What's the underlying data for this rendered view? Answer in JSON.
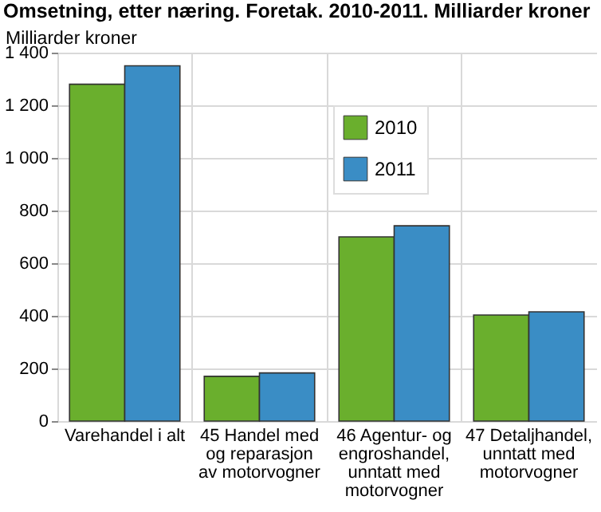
{
  "chart_data": {
    "type": "bar",
    "title": "Omsetning, etter næring. Foretak. 2010-2011. Milliarder kroner",
    "ylabel": "Milliarder kroner",
    "categories": [
      "Varehandel i alt",
      "45 Handel med og reparasjon av motorvogner",
      "46 Agentur- og engroshandel, unntatt med motorvogner",
      "47 Detaljhandel, unntatt med motorvogner"
    ],
    "series": [
      {
        "name": "2010",
        "color": "#6aaf2d",
        "values": [
          1280,
          170,
          700,
          403
        ]
      },
      {
        "name": "2011",
        "color": "#3a8dc5",
        "values": [
          1350,
          183,
          742,
          415
        ]
      }
    ],
    "ylim": [
      0,
      1400
    ],
    "yticks": [
      0,
      {
        "value": 200,
        "label": "200"
      },
      {
        "value": 400,
        "label": "400"
      },
      {
        "value": 600,
        "label": "600"
      },
      {
        "value": 800,
        "label": "800"
      },
      {
        "value": 1000,
        "label": "1 000"
      },
      {
        "value": 1200,
        "label": "1 200"
      },
      {
        "value": 1400,
        "label": "1 400"
      }
    ],
    "grid": true,
    "legend": "top"
  }
}
